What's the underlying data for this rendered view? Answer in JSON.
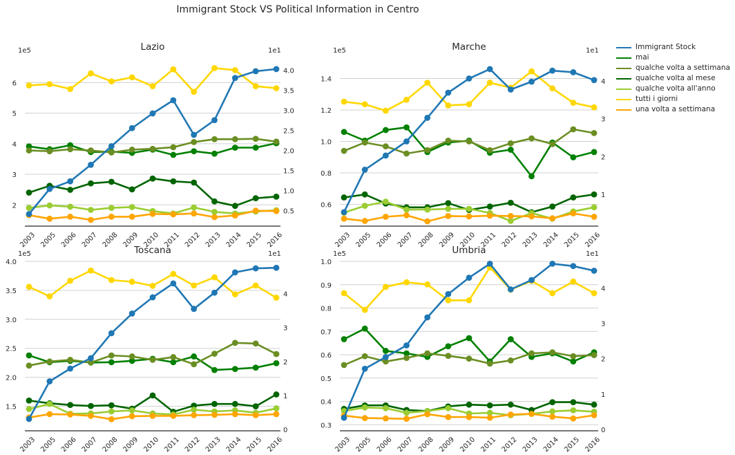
{
  "title": "Immigrant Stock VS Political Information in Centro",
  "x_ticks": [
    "2003",
    "2005",
    "2006",
    "2007",
    "2008",
    "2009",
    "2010",
    "2011",
    "2012",
    "2013",
    "2014",
    "2015",
    "2016"
  ],
  "series_info": [
    {
      "key": "immigrant",
      "name": "Immigrant Stock",
      "color": "#1f77b4"
    },
    {
      "key": "mai",
      "name": "mai",
      "color": "#008000"
    },
    {
      "key": "settimana",
      "name": "qualche volta a settimana",
      "color": "#6b8e23"
    },
    {
      "key": "mese",
      "name": "qualche volta al mese",
      "color": "#006400"
    },
    {
      "key": "anno",
      "name": "qualche volta all'anno",
      "color": "#9acd32"
    },
    {
      "key": "giorni",
      "name": "tutti i giorni",
      "color": "#ffd700"
    },
    {
      "key": "una",
      "name": "una volta a settimana",
      "color": "#ffa500"
    }
  ],
  "chart_data": [
    {
      "type": "line",
      "title": "Lazio",
      "left_multiplier": "1e5",
      "right_multiplier": "1e1",
      "left_ticks": [
        "2",
        "3",
        "4",
        "5",
        "6"
      ],
      "right_ticks": [
        "0.5",
        "1.0",
        "1.5",
        "2.0",
        "2.5",
        "3.0",
        "3.5",
        "4.0"
      ],
      "left_ylim": [
        1.35,
        6.8
      ],
      "right_ylim": [
        0.15,
        4.3
      ],
      "left_tick_values": [
        2,
        3,
        4,
        5,
        6
      ],
      "right_tick_values": [
        0.5,
        1.0,
        1.5,
        2.0,
        2.5,
        3.0,
        3.5,
        4.0
      ],
      "series": [
        {
          "key": "immigrant",
          "axis": "left",
          "values": [
            1.7,
            2.52,
            2.77,
            3.31,
            3.92,
            4.51,
            4.99,
            5.42,
            4.29,
            4.77,
            6.15,
            6.37,
            6.44
          ]
        },
        {
          "key": "mai",
          "axis": "right",
          "values": [
            2.1,
            2.03,
            2.13,
            1.96,
            1.97,
            1.94,
            2.02,
            1.89,
            1.98,
            1.92,
            2.07,
            2.07,
            2.18
          ]
        },
        {
          "key": "settimana",
          "axis": "right",
          "values": [
            2.0,
            1.98,
            2.03,
            2.0,
            1.95,
            2.02,
            2.04,
            2.08,
            2.21,
            2.28,
            2.28,
            2.29,
            2.22
          ]
        },
        {
          "key": "mese",
          "axis": "right",
          "values": [
            0.95,
            1.12,
            1.02,
            1.18,
            1.22,
            1.03,
            1.3,
            1.23,
            1.2,
            0.73,
            0.62,
            0.81,
            0.85
          ]
        },
        {
          "key": "anno",
          "axis": "right",
          "values": [
            0.57,
            0.63,
            0.6,
            0.52,
            0.57,
            0.59,
            0.49,
            0.43,
            0.58,
            0.47,
            0.43,
            0.48,
            0.51
          ]
        },
        {
          "key": "giorni",
          "axis": "right",
          "values": [
            3.62,
            3.65,
            3.53,
            3.92,
            3.72,
            3.82,
            3.6,
            4.02,
            3.46,
            4.05,
            4.0,
            3.6,
            3.55
          ]
        },
        {
          "key": "una",
          "axis": "right",
          "values": [
            0.39,
            0.3,
            0.35,
            0.27,
            0.35,
            0.35,
            0.42,
            0.41,
            0.43,
            0.34,
            0.38,
            0.5,
            0.49
          ]
        }
      ]
    },
    {
      "type": "line",
      "title": "Marche",
      "left_multiplier": "1e5",
      "right_multiplier": "1e1",
      "left_ticks": [
        "0.6",
        "0.8",
        "1.0",
        "1.2",
        "1.4"
      ],
      "right_ticks": [
        "1",
        "2",
        "3",
        "4"
      ],
      "left_ylim": [
        0.47,
        1.53
      ],
      "right_ylim": [
        0.2,
        4.6
      ],
      "left_tick_values": [
        0.6,
        0.8,
        1.0,
        1.2,
        1.4
      ],
      "right_tick_values": [
        1,
        2,
        3,
        4
      ],
      "series": [
        {
          "key": "immigrant",
          "axis": "left",
          "values": [
            0.55,
            0.82,
            0.91,
            1.0,
            1.15,
            1.31,
            1.4,
            1.46,
            1.33,
            1.38,
            1.45,
            1.44,
            1.39
          ]
        },
        {
          "key": "mai",
          "axis": "right",
          "values": [
            2.65,
            2.42,
            2.7,
            2.77,
            2.12,
            2.37,
            2.42,
            2.1,
            2.18,
            1.48,
            2.37,
            1.98,
            2.12
          ]
        },
        {
          "key": "settimana",
          "axis": "right",
          "values": [
            2.15,
            2.37,
            2.27,
            2.08,
            2.17,
            2.42,
            2.4,
            2.17,
            2.35,
            2.48,
            2.33,
            2.72,
            2.62
          ]
        },
        {
          "key": "mese",
          "axis": "right",
          "values": [
            0.92,
            1.0,
            0.76,
            0.66,
            0.66,
            0.77,
            0.59,
            0.68,
            0.78,
            0.53,
            0.68,
            0.92,
            1.0
          ]
        },
        {
          "key": "anno",
          "axis": "right",
          "values": [
            0.52,
            0.7,
            0.81,
            0.6,
            0.6,
            0.62,
            0.62,
            0.51,
            0.3,
            0.51,
            0.36,
            0.55,
            0.66
          ]
        },
        {
          "key": "giorni",
          "axis": "right",
          "values": [
            3.45,
            3.38,
            3.21,
            3.5,
            3.95,
            3.35,
            3.38,
            3.95,
            3.82,
            4.25,
            3.8,
            3.42,
            3.3
          ]
        },
        {
          "key": "una",
          "axis": "right",
          "values": [
            0.36,
            0.3,
            0.41,
            0.45,
            0.29,
            0.43,
            0.42,
            0.44,
            0.43,
            0.42,
            0.37,
            0.5,
            0.41
          ]
        }
      ]
    },
    {
      "type": "line",
      "title": "Toscana",
      "left_multiplier": "1e5",
      "right_multiplier": "1e1",
      "left_ticks": [
        "1.5",
        "2.0",
        "2.5",
        "3.0",
        "3.5",
        "4.0"
      ],
      "right_ticks": [
        "0",
        "1",
        "2",
        "3",
        "4"
      ],
      "left_ylim": [
        1.1,
        4.0
      ],
      "right_ylim": [
        0.0,
        4.95
      ],
      "left_tick_values": [
        1.5,
        2.0,
        2.5,
        3.0,
        3.5,
        4.0
      ],
      "right_tick_values": [
        0,
        1,
        2,
        3,
        4
      ],
      "series": [
        {
          "key": "immigrant",
          "axis": "left",
          "values": [
            1.28,
            1.93,
            2.15,
            2.33,
            2.76,
            3.1,
            3.38,
            3.62,
            3.18,
            3.46,
            3.81,
            3.88,
            3.89
          ]
        },
        {
          "key": "mai",
          "axis": "right",
          "values": [
            2.18,
            1.98,
            2.02,
            1.97,
            1.98,
            2.02,
            2.08,
            1.98,
            2.15,
            1.75,
            1.78,
            1.82,
            1.95
          ]
        },
        {
          "key": "settimana",
          "axis": "right",
          "values": [
            1.88,
            2.0,
            2.05,
            1.97,
            2.18,
            2.15,
            2.05,
            2.13,
            1.92,
            2.23,
            2.55,
            2.53,
            2.22
          ]
        },
        {
          "key": "mese",
          "axis": "right",
          "values": [
            0.85,
            0.77,
            0.72,
            0.69,
            0.71,
            0.61,
            1.0,
            0.52,
            0.7,
            0.75,
            0.75,
            0.68,
            1.03
          ]
        },
        {
          "key": "anno",
          "axis": "right",
          "values": [
            0.6,
            0.75,
            0.46,
            0.47,
            0.53,
            0.56,
            0.47,
            0.44,
            0.58,
            0.53,
            0.56,
            0.49,
            0.62
          ]
        },
        {
          "key": "giorni",
          "axis": "right",
          "values": [
            4.2,
            3.92,
            4.38,
            4.68,
            4.4,
            4.35,
            4.23,
            4.58,
            4.24,
            4.48,
            3.98,
            4.24,
            3.88
          ]
        },
        {
          "key": "una",
          "axis": "right",
          "values": [
            0.35,
            0.45,
            0.44,
            0.4,
            0.3,
            0.39,
            0.4,
            0.4,
            0.42,
            0.43,
            0.45,
            0.42,
            0.45
          ]
        }
      ]
    },
    {
      "type": "line",
      "title": "Umbria",
      "left_multiplier": "1e5",
      "right_multiplier": "1e1",
      "left_ticks": [
        "0.3",
        "0.4",
        "0.5",
        "0.6",
        "0.7",
        "0.8",
        "0.9",
        "1.0"
      ],
      "right_ticks": [
        "0",
        "1",
        "2",
        "3",
        "4"
      ],
      "left_ylim": [
        0.28,
        1.0
      ],
      "right_ylim": [
        0.0,
        4.75
      ],
      "left_tick_values": [
        0.3,
        0.4,
        0.5,
        0.6,
        0.7,
        0.8,
        0.9,
        1.0
      ],
      "right_tick_values": [
        0,
        1,
        2,
        3,
        4
      ],
      "series": [
        {
          "key": "immigrant",
          "axis": "left",
          "values": [
            0.33,
            0.54,
            0.59,
            0.64,
            0.76,
            0.86,
            0.93,
            0.99,
            0.88,
            0.92,
            0.99,
            0.98,
            0.96
          ]
        },
        {
          "key": "mai",
          "axis": "right",
          "values": [
            2.55,
            2.85,
            2.22,
            2.15,
            2.05,
            2.35,
            2.58,
            1.92,
            2.55,
            2.05,
            2.15,
            1.92,
            2.18
          ]
        },
        {
          "key": "settimana",
          "axis": "right",
          "values": [
            1.82,
            2.07,
            1.92,
            2.02,
            2.15,
            2.08,
            2.0,
            1.86,
            1.95,
            2.15,
            2.18,
            2.07,
            2.1
          ]
        },
        {
          "key": "mese",
          "axis": "right",
          "values": [
            0.58,
            0.68,
            0.68,
            0.55,
            0.52,
            0.65,
            0.7,
            0.68,
            0.7,
            0.55,
            0.77,
            0.77,
            0.7
          ]
        },
        {
          "key": "anno",
          "axis": "right",
          "values": [
            0.52,
            0.62,
            0.6,
            0.47,
            0.52,
            0.6,
            0.45,
            0.47,
            0.4,
            0.44,
            0.51,
            0.54,
            0.5
          ]
        },
        {
          "key": "giorni",
          "axis": "right",
          "values": [
            3.85,
            3.38,
            4.03,
            4.16,
            4.1,
            3.65,
            3.65,
            4.58,
            3.95,
            4.2,
            3.85,
            4.18,
            3.85
          ]
        },
        {
          "key": "una",
          "axis": "right",
          "values": [
            0.39,
            0.32,
            0.31,
            0.3,
            0.43,
            0.35,
            0.35,
            0.33,
            0.42,
            0.44,
            0.36,
            0.31,
            0.4
          ]
        }
      ]
    }
  ]
}
